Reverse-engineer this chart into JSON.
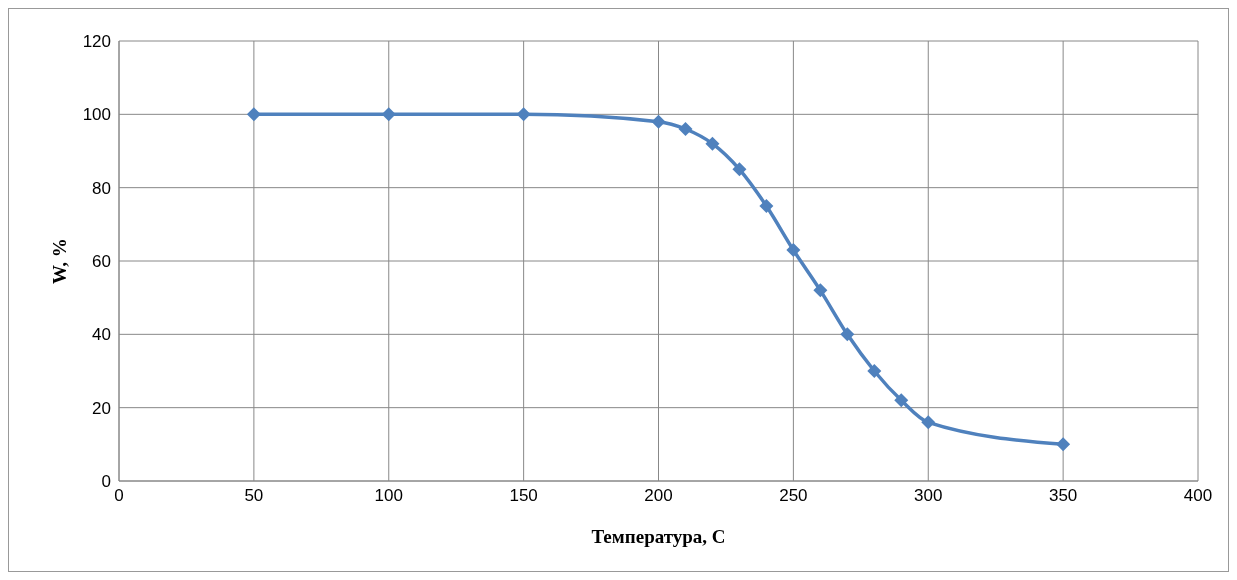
{
  "chart_data": {
    "type": "line",
    "xlabel": "Температура, С",
    "ylabel": "W, %",
    "x": [
      50,
      100,
      150,
      200,
      210,
      220,
      230,
      240,
      250,
      260,
      270,
      280,
      290,
      300,
      350
    ],
    "series": [
      {
        "color": "#4f81bd",
        "values": [
          100,
          100,
          100,
          98,
          96,
          92,
          85,
          75,
          63,
          52,
          40,
          30,
          22,
          16,
          10
        ]
      }
    ],
    "xlim": [
      0,
      400
    ],
    "xticks": [
      0,
      50,
      100,
      150,
      200,
      250,
      300,
      350,
      400
    ],
    "ylim": [
      0,
      120
    ],
    "yticks": [
      0,
      20,
      40,
      60,
      80,
      100,
      120
    ],
    "grid": true,
    "marker": "diamond",
    "line_style": "solid"
  }
}
